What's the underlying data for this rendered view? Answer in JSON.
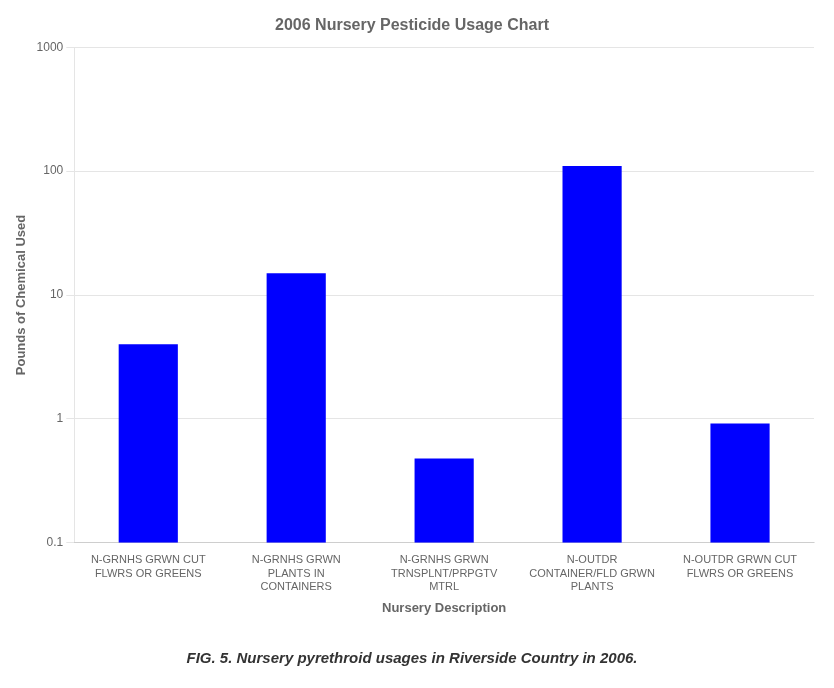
{
  "chart_data": {
    "type": "bar",
    "title": "2006 Nursery Pesticide Usage Chart",
    "xlabel": "Nursery Description",
    "ylabel": "Pounds of Chemical Used",
    "caption": "FIG. 5. Nursery pyrethroid usages in Riverside Country in 2006.",
    "categories": [
      "N-GRNHS GRWN CUT\nFLWRS OR GREENS",
      "N-GRNHS GRWN\nPLANTS IN\nCONTAINERS",
      "N-GRNHS GRWN\nTRNSPLNT/PRPGTV\nMTRL",
      "N-OUTDR\nCONTAINER/FLD GRWN\nPLANTS",
      "N-OUTDR GRWN CUT\nFLWRS OR GREENS"
    ],
    "values": [
      4.0,
      15.0,
      0.48,
      110.0,
      0.92
    ],
    "color": "#0000FF",
    "log": "y",
    "ylim": [
      0.1,
      1000
    ],
    "yticks": [
      0.1,
      1,
      10,
      100,
      1000
    ],
    "grid": true
  }
}
